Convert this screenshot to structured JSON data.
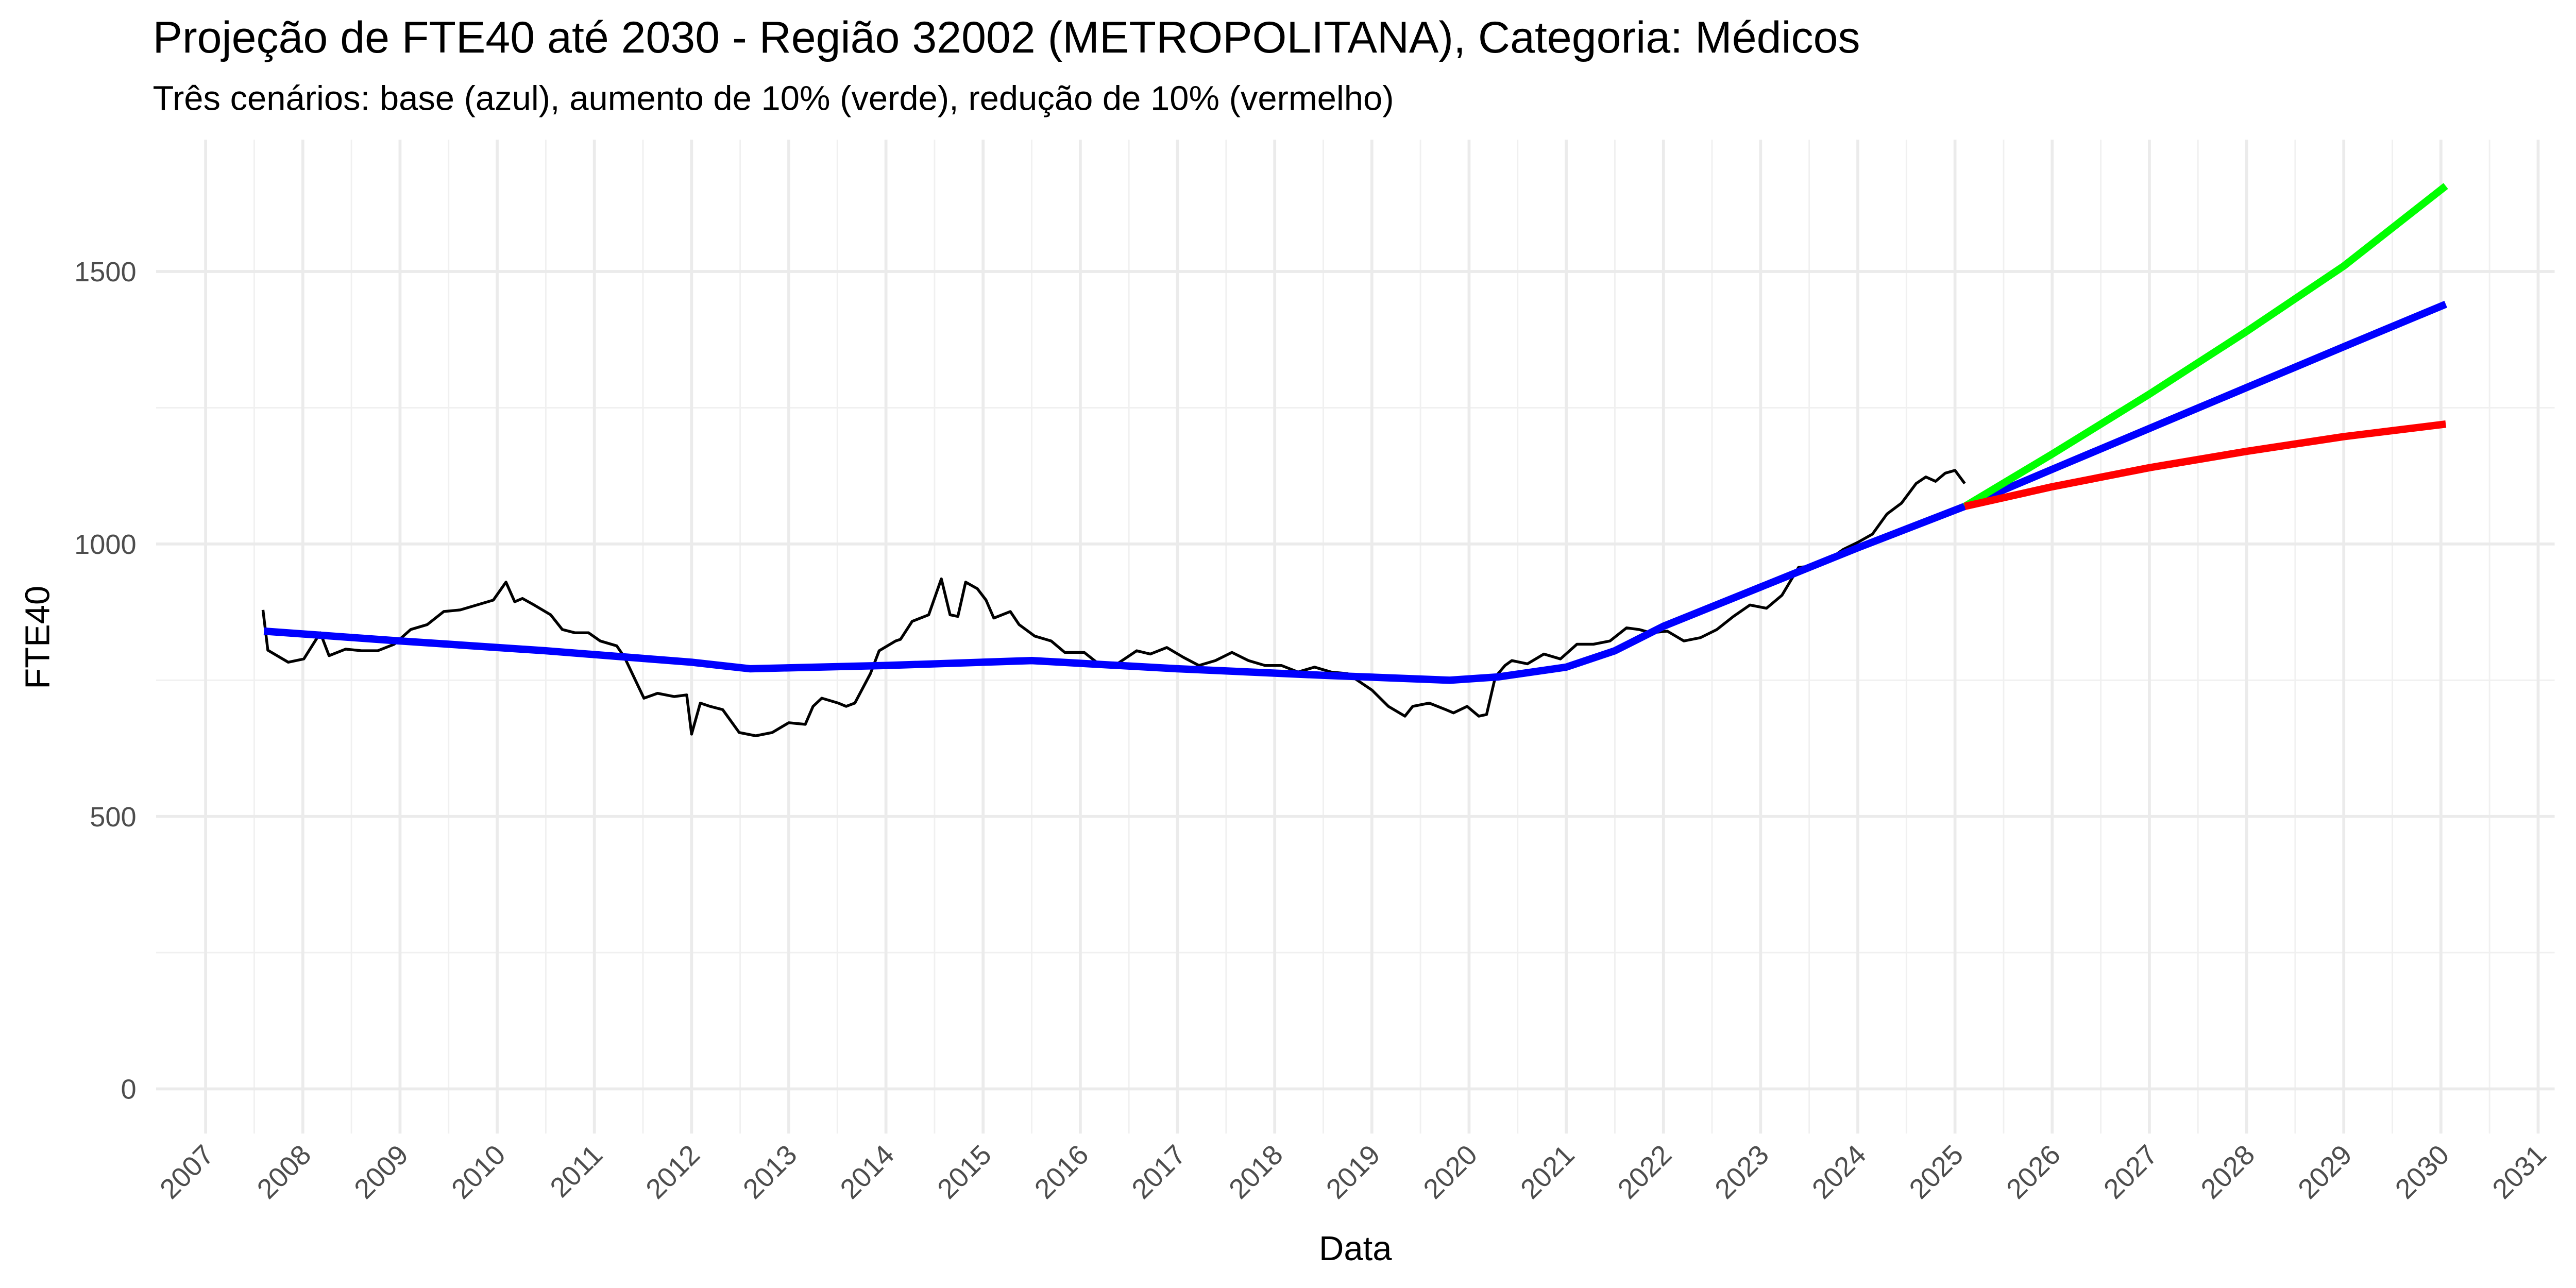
{
  "chart_data": {
    "type": "line",
    "title": "Projeção de FTE40 até 2030 - Região 32002 (METROPOLITANA), Categoria: Médicos",
    "subtitle": "Três cenários: base (azul), aumento de 10% (verde), redução de 10% (vermelho)",
    "x_label": "Data",
    "y_label": "FTE40",
    "xlim": [
      2006.49,
      2031.17
    ],
    "xticks": [
      2007,
      2008,
      2009,
      2010,
      2011,
      2012,
      2013,
      2014,
      2015,
      2016,
      2017,
      2018,
      2019,
      2020,
      2021,
      2022,
      2023,
      2024,
      2025,
      2026,
      2027,
      2028,
      2029,
      2030,
      2031
    ],
    "ylim": [
      -82,
      1742
    ],
    "yticks": [
      0,
      500,
      1000,
      1500
    ],
    "grid": true,
    "series": [
      {
        "color": "#000000",
        "width": 1.7,
        "x": [
          2007.59,
          2007.64,
          2007.85,
          2008.01,
          2008.18,
          2008.27,
          2008.44,
          2008.61,
          2008.77,
          2008.94,
          2009.11,
          2009.28,
          2009.45,
          2009.62,
          2009.79,
          2009.96,
          2010.09,
          2010.18,
          2010.26,
          2010.38,
          2010.55,
          2010.67,
          2010.8,
          2010.94,
          2011.06,
          2011.23,
          2011.31,
          2011.39,
          2011.51,
          2011.65,
          2011.82,
          2011.95,
          2012.0,
          2012.09,
          2012.19,
          2012.32,
          2012.49,
          2012.66,
          2012.83,
          2013.0,
          2013.17,
          2013.25,
          2013.34,
          2013.51,
          2013.59,
          2013.68,
          2013.84,
          2013.93,
          2014.1,
          2014.15,
          2014.27,
          2014.44,
          2014.57,
          2014.66,
          2014.74,
          2014.82,
          2014.94,
          2015.03,
          2015.11,
          2015.28,
          2015.37,
          2015.53,
          2015.7,
          2015.84,
          2016.04,
          2016.21,
          2016.38,
          2016.58,
          2016.72,
          2016.89,
          2017.06,
          2017.22,
          2017.39,
          2017.56,
          2017.73,
          2017.9,
          2018.07,
          2018.24,
          2018.41,
          2018.58,
          2018.75,
          2019.0,
          2019.17,
          2019.34,
          2019.42,
          2019.59,
          2019.76,
          2019.84,
          2019.98,
          2020.1,
          2020.18,
          2020.27,
          2020.37,
          2020.44,
          2020.6,
          2020.77,
          2020.94,
          2021.11,
          2021.28,
          2021.45,
          2021.62,
          2021.75,
          2021.87,
          2022.04,
          2022.21,
          2022.38,
          2022.55,
          2022.72,
          2022.89,
          2023.06,
          2023.22,
          2023.39,
          2023.56,
          2023.73,
          2023.85,
          2024.0,
          2024.15,
          2024.3,
          2024.45,
          2024.6,
          2024.7,
          2024.8,
          2024.9,
          2025.0,
          2025.1
        ],
        "values": [
          879,
          805,
          783,
          789,
          837,
          795,
          807,
          804,
          804,
          816,
          843,
          852,
          876,
          879,
          888,
          897,
          930,
          894,
          900,
          888,
          870,
          843,
          837,
          837,
          822,
          813,
          792,
          762,
          717,
          726,
          720,
          723,
          651,
          708,
          702,
          696,
          654,
          648,
          654,
          672,
          669,
          702,
          717,
          708,
          702,
          708,
          762,
          804,
          822,
          825,
          858,
          870,
          936,
          870,
          867,
          930,
          918,
          897,
          864,
          876,
          852,
          831,
          822,
          801,
          801,
          777,
          780,
          804,
          798,
          810,
          792,
          777,
          786,
          801,
          786,
          777,
          777,
          765,
          774,
          765,
          762,
          732,
          702,
          684,
          702,
          708,
          696,
          690,
          702,
          684,
          687,
          756,
          777,
          786,
          780,
          798,
          789,
          816,
          816,
          822,
          846,
          843,
          837,
          840,
          822,
          828,
          843,
          867,
          888,
          882,
          906,
          957,
          960,
          975,
          990,
          1003,
          1018,
          1055,
          1075,
          1111,
          1123,
          1115,
          1130,
          1135,
          1111
        ]
      },
      {
        "color": "#0000ff",
        "width": 4.5,
        "x": [
          2007.6,
          2009,
          2010.5,
          2012,
          2012.6,
          2014,
          2015.5,
          2017,
          2018.5,
          2019.8,
          2020.3,
          2021.0,
          2021.5,
          2022,
          2023,
          2024,
          2025.1,
          2026,
          2027,
          2028,
          2029,
          2030.05
        ],
        "values": [
          840,
          822,
          804,
          783,
          771,
          777,
          786,
          771,
          759,
          750,
          756,
          774,
          804,
          849,
          921,
          993,
          1069,
          1137,
          1212,
          1287,
          1362,
          1440
        ]
      },
      {
        "color": "#00ff00",
        "width": 4.5,
        "x": [
          2025.1,
          2026,
          2027,
          2028,
          2029,
          2030.05
        ],
        "values": [
          1069,
          1165,
          1275,
          1390,
          1510,
          1657
        ]
      },
      {
        "color": "#ff0000",
        "width": 4.5,
        "x": [
          2025.1,
          2026,
          2027,
          2028,
          2029,
          2030.05
        ],
        "values": [
          1069,
          1105,
          1140,
          1170,
          1197,
          1220
        ]
      }
    ]
  }
}
